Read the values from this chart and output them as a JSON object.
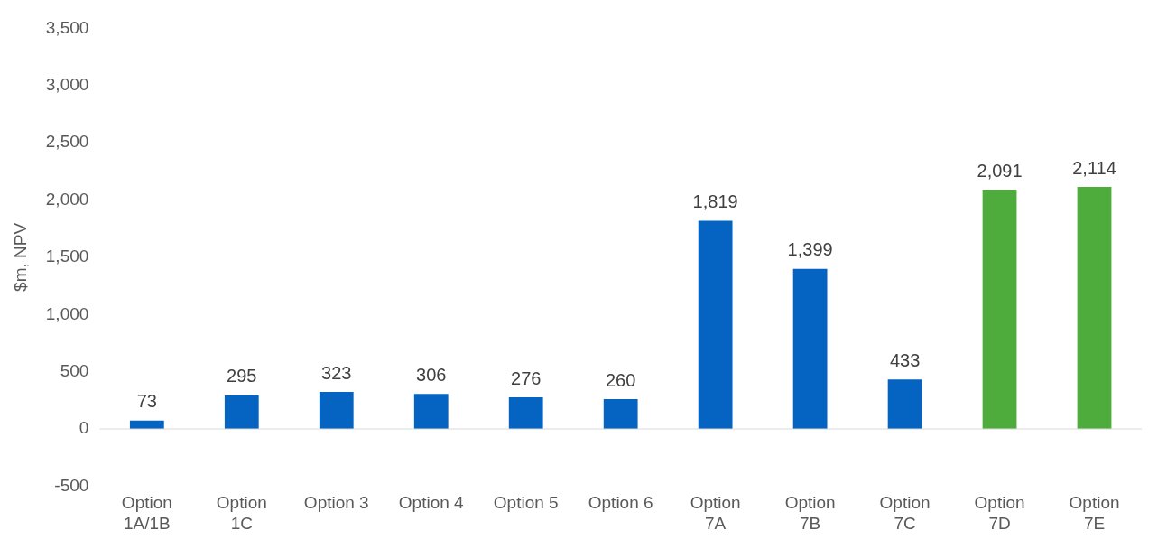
{
  "chart_data": {
    "type": "bar",
    "ylabel": "$m, NPV",
    "categories": [
      "Option\n1A/1B",
      "Option\n1C",
      "Option 3",
      "Option 4",
      "Option 5",
      "Option 6",
      "Option\n7A",
      "Option\n7B",
      "Option\n7C",
      "Option\n7D",
      "Option\n7E"
    ],
    "values": [
      73,
      295,
      323,
      306,
      276,
      260,
      1819,
      1399,
      433,
      2091,
      2114
    ],
    "value_labels": [
      "73",
      "295",
      "323",
      "306",
      "276",
      "260",
      "1,819",
      "1,399",
      "433",
      "2,091",
      "2,114"
    ],
    "colors": [
      "#0563c1",
      "#0563c1",
      "#0563c1",
      "#0563c1",
      "#0563c1",
      "#0563c1",
      "#0563c1",
      "#0563c1",
      "#0563c1",
      "#4eac3c",
      "#4eac3c"
    ],
    "ylim": [
      -500,
      3500
    ],
    "yticks": [
      -500,
      0,
      500,
      {
        "value": 1000,
        "label": "1,000"
      },
      {
        "value": 1500,
        "label": "1,500"
      },
      {
        "value": 2000,
        "label": "2,000"
      },
      {
        "value": 2500,
        "label": "2,500"
      },
      {
        "value": 3000,
        "label": "3,000"
      },
      {
        "value": 3500,
        "label": "3,500"
      }
    ],
    "ref_lines": [
      {
        "axis": "y",
        "value": 0,
        "color": "#d9d9d9"
      }
    ],
    "legend": false
  }
}
